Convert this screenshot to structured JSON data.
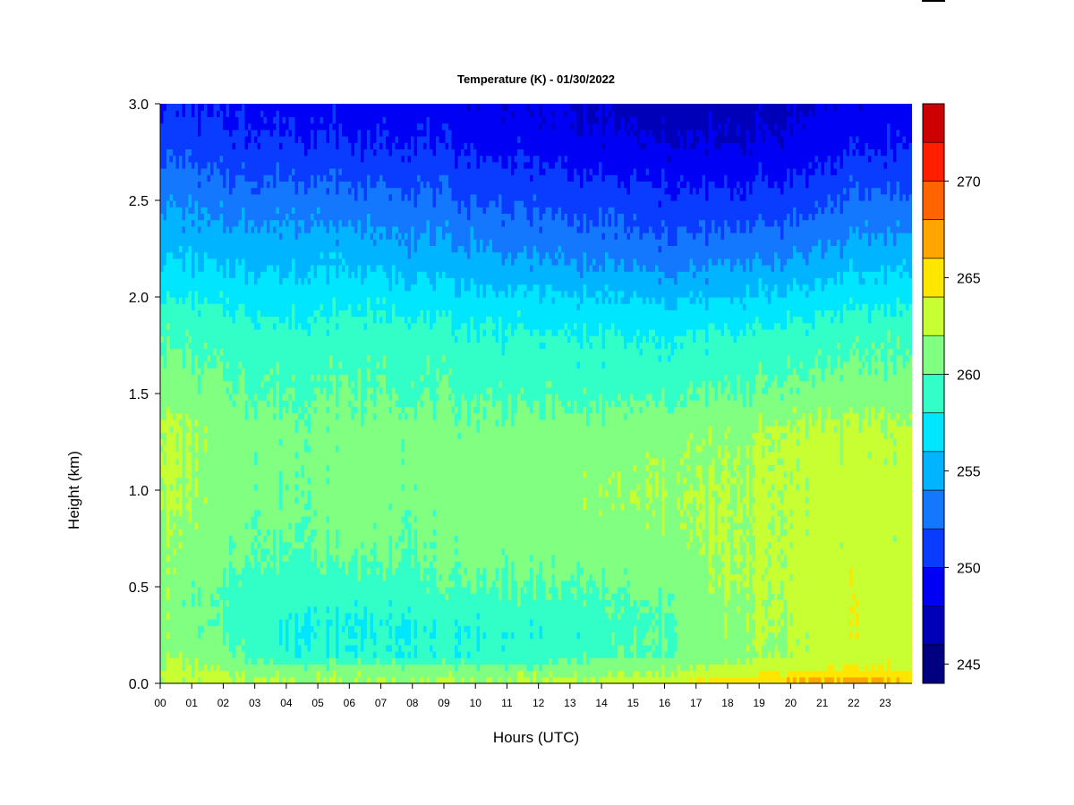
{
  "chart_data": {
    "type": "heatmap",
    "title": "Temperature (K) - 01/30/2022",
    "xlabel": "Hours (UTC)",
    "ylabel": "Height (km)",
    "x_ticks": [
      "00",
      "01",
      "02",
      "03",
      "04",
      "05",
      "06",
      "07",
      "08",
      "09",
      "10",
      "11",
      "12",
      "13",
      "14",
      "15",
      "16",
      "17",
      "18",
      "19",
      "20",
      "21",
      "22",
      "23"
    ],
    "xlim": [
      0,
      23.85
    ],
    "y_ticks": [
      "0.0",
      "0.5",
      "1.0",
      "1.5",
      "2.0",
      "2.5",
      "3.0"
    ],
    "ylim": [
      0,
      3.0
    ],
    "colorbar": {
      "min": 244,
      "max": 274,
      "levels": [
        244,
        246,
        248,
        250,
        252,
        254,
        256,
        258,
        260,
        262,
        264,
        266,
        268,
        270,
        272,
        274
      ],
      "colors": [
        "#000080",
        "#0000b8",
        "#0000f5",
        "#0a3cff",
        "#1478ff",
        "#00b4ff",
        "#00e6ff",
        "#32ffc8",
        "#80ff80",
        "#c8ff32",
        "#ffe600",
        "#ffa500",
        "#ff6400",
        "#ff1e00",
        "#cc0000",
        "#800000"
      ],
      "tick_labels": [
        "245",
        "250",
        "255",
        "260",
        "265",
        "270"
      ],
      "tick_values": [
        245,
        250,
        255,
        260,
        265,
        270
      ]
    },
    "profile_heights_km": [
      0.0,
      0.03,
      0.08,
      0.15,
      0.3,
      0.5,
      0.7,
      1.0,
      1.3,
      1.5,
      1.8,
      2.0,
      2.2,
      2.5,
      2.8,
      3.0
    ],
    "profiles_K": [
      {
        "hour": 0,
        "temps": [
          262.5,
          263.0,
          262.5,
          262.0,
          261.5,
          261.5,
          261.8,
          262.5,
          262.6,
          261.5,
          260.0,
          258.0,
          256.0,
          254.0,
          251.5,
          250.0
        ]
      },
      {
        "hour": 2,
        "temps": [
          262.5,
          262.5,
          261.5,
          260.5,
          259.5,
          259.8,
          260.5,
          261.0,
          261.0,
          260.3,
          259.0,
          257.5,
          255.5,
          253.0,
          250.5,
          249.5
        ]
      },
      {
        "hour": 4,
        "temps": [
          262.0,
          262.0,
          260.5,
          258.5,
          258.0,
          259.0,
          260.0,
          260.5,
          260.8,
          259.8,
          258.8,
          257.0,
          255.5,
          253.0,
          250.3,
          249.5
        ]
      },
      {
        "hour": 6,
        "temps": [
          262.0,
          262.0,
          260.5,
          258.3,
          257.8,
          259.0,
          260.5,
          261.0,
          260.8,
          260.0,
          259.0,
          257.5,
          255.5,
          252.8,
          250.0,
          249.0
        ]
      },
      {
        "hour": 8,
        "temps": [
          262.0,
          262.0,
          260.5,
          258.5,
          258.3,
          259.3,
          260.3,
          260.8,
          260.8,
          259.8,
          259.0,
          257.0,
          255.0,
          252.5,
          250.0,
          249.0
        ]
      },
      {
        "hour": 10,
        "temps": [
          262.0,
          262.0,
          260.5,
          258.5,
          258.3,
          260.0,
          260.8,
          261.0,
          260.8,
          259.8,
          258.5,
          256.5,
          254.5,
          252.0,
          249.5,
          248.5
        ]
      },
      {
        "hour": 12,
        "temps": [
          262.0,
          262.0,
          260.5,
          258.5,
          258.5,
          259.8,
          260.8,
          261.0,
          260.8,
          259.5,
          258.3,
          256.3,
          254.0,
          251.5,
          249.0,
          248.0
        ]
      },
      {
        "hour": 14,
        "temps": [
          262.5,
          262.3,
          261.0,
          259.5,
          259.0,
          260.0,
          261.0,
          261.5,
          261.0,
          259.5,
          258.0,
          256.0,
          253.5,
          251.0,
          248.5,
          247.5
        ]
      },
      {
        "hour": 16,
        "temps": [
          263.0,
          262.5,
          261.5,
          260.0,
          259.8,
          260.3,
          261.3,
          261.8,
          261.3,
          259.5,
          257.8,
          255.5,
          253.0,
          250.5,
          248.0,
          247.0
        ]
      },
      {
        "hour": 18,
        "temps": [
          266.5,
          264.0,
          262.5,
          261.3,
          261.5,
          262.0,
          262.0,
          262.0,
          261.5,
          260.0,
          258.3,
          256.0,
          253.5,
          250.5,
          248.0,
          247.0
        ]
      },
      {
        "hour": 20,
        "temps": [
          267.0,
          265.0,
          263.5,
          262.3,
          262.5,
          262.5,
          262.5,
          262.5,
          262.5,
          260.5,
          258.8,
          256.5,
          254.0,
          251.0,
          248.5,
          247.5
        ]
      },
      {
        "hour": 22,
        "temps": [
          267.5,
          265.5,
          264.0,
          263.0,
          263.5,
          263.5,
          262.8,
          263.0,
          262.5,
          261.0,
          259.3,
          257.3,
          255.0,
          252.3,
          249.5,
          248.5
        ]
      },
      {
        "hour": 23.85,
        "temps": [
          267.0,
          265.0,
          263.5,
          262.5,
          263.0,
          263.0,
          262.8,
          263.0,
          262.5,
          261.0,
          259.5,
          257.5,
          255.5,
          252.5,
          250.0,
          249.0
        ]
      }
    ]
  }
}
